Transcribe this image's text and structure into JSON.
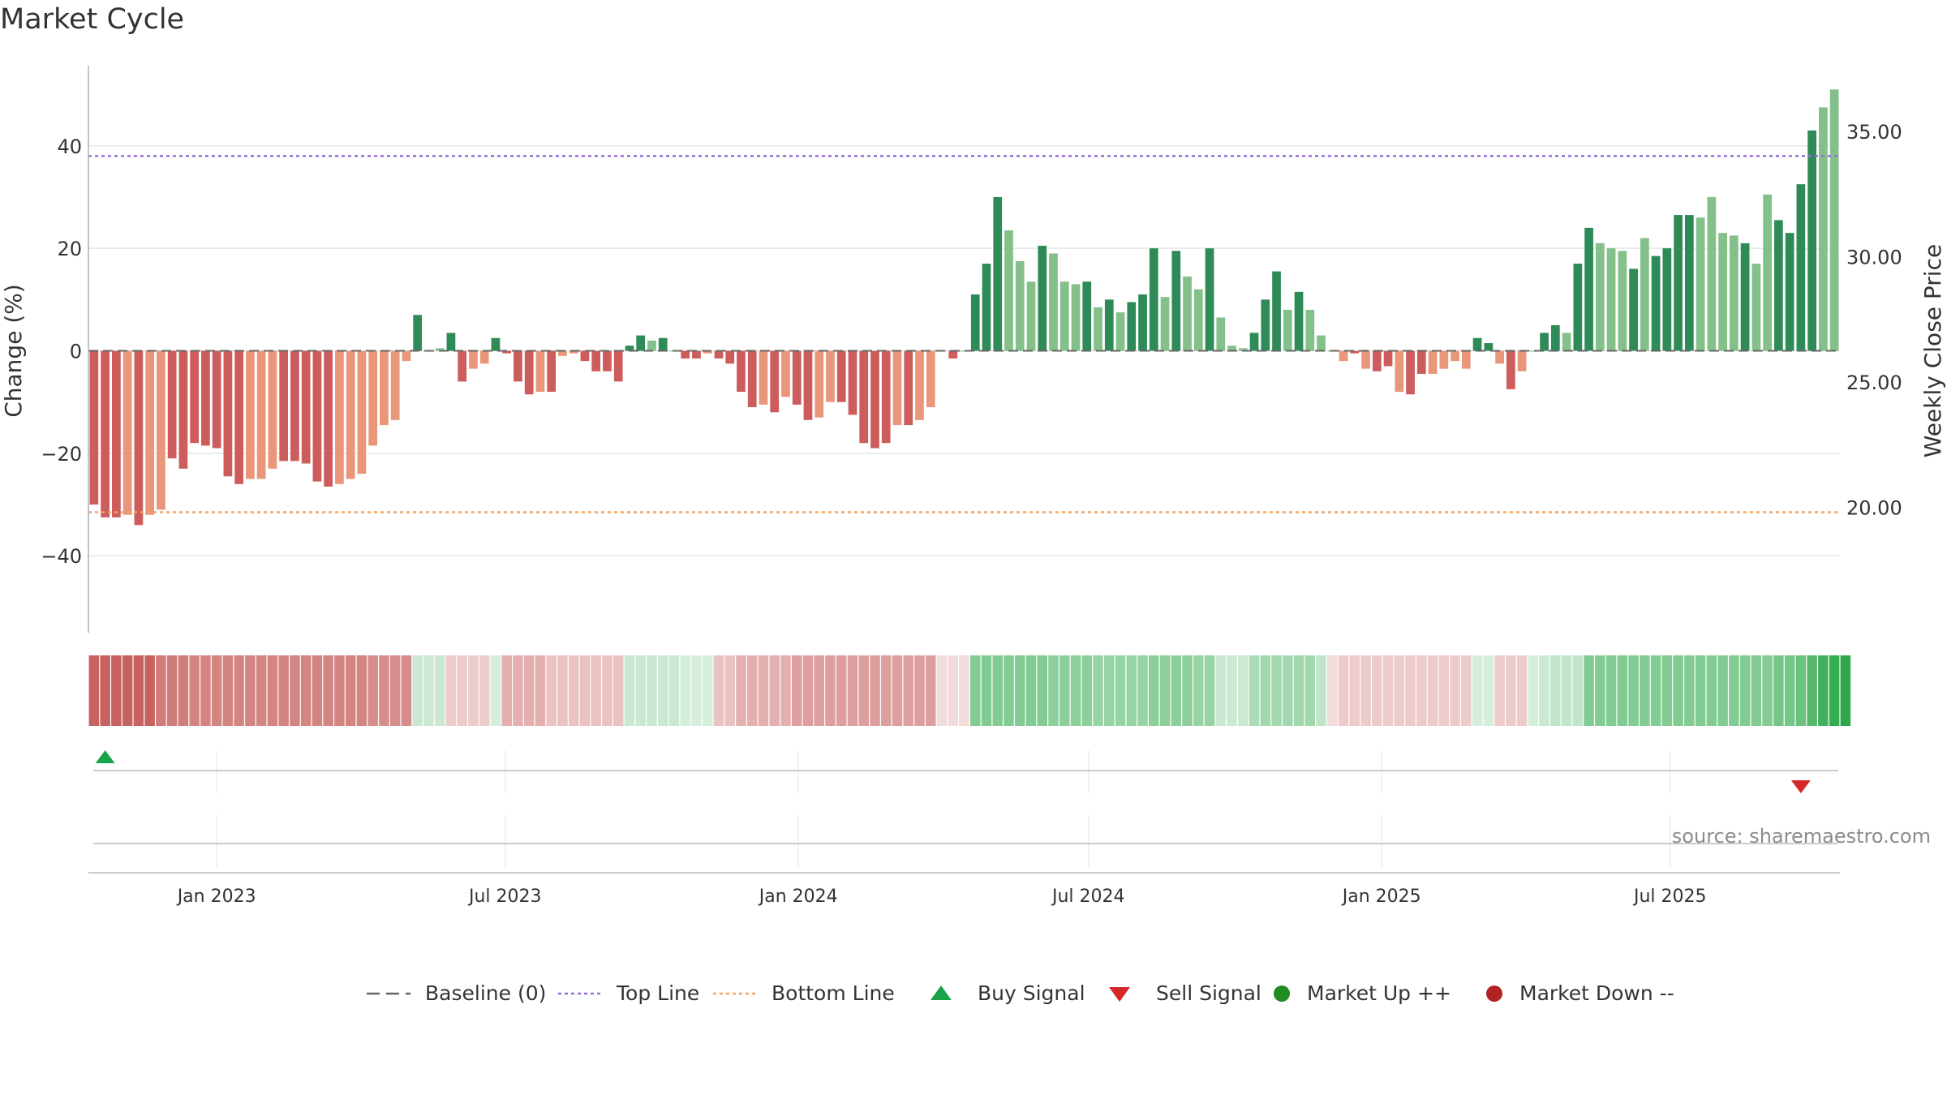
{
  "title": "Market Cycle",
  "source": "source: sharemaestro.com",
  "colors": {
    "strong_up": "#2e8b57",
    "weak_up": "#84c18a",
    "strong_down": "#cd5c5c",
    "weak_down": "#e9967a",
    "top_line": "#9370db",
    "bottom_line": "#f4a460",
    "baseline": "#666666",
    "buy": "#1aa34a",
    "sell": "#d62728",
    "market_up": "#228b22",
    "market_down": "#b22222"
  },
  "chart_data": {
    "type": "bar",
    "x_start": "2022-10-16",
    "x_interval_days": 7,
    "ylabel": "Change (%)",
    "ylabel_right": "Weekly Close Price",
    "ylim": [
      -55,
      55
    ],
    "yticks": [
      "40",
      "20",
      "0",
      "−20",
      "−40"
    ],
    "ytick_values": [
      40,
      20,
      0,
      -20,
      -40
    ],
    "y2lim": [
      15.0,
      37.5
    ],
    "y2ticks": [
      "35.00",
      "30.00",
      "25.00",
      "20.00"
    ],
    "y2tick_values": [
      35,
      30,
      25,
      20
    ],
    "xticks": [
      "Jan 2023",
      "Jul 2023",
      "Jan 2024",
      "Jul 2024",
      "Jan 2025",
      "Jul 2025"
    ],
    "xtick_dates": [
      "2023-01-01",
      "2023-07-01",
      "2024-01-01",
      "2024-07-01",
      "2025-01-01",
      "2025-07-01"
    ],
    "top_line": 38,
    "bottom_line": -31.5,
    "baseline": 0,
    "values": [
      -30,
      -32.5,
      -32.5,
      -32,
      -34,
      -32,
      -31,
      -21,
      -23,
      -18,
      -18.5,
      -19,
      -24.5,
      -26,
      -25,
      -25,
      -23,
      -21.5,
      -21.5,
      -22,
      -25.5,
      -26.5,
      -26,
      -25,
      -24,
      -18.5,
      -14.5,
      -13.5,
      -2,
      7,
      0,
      0.5,
      3.5,
      -6,
      -3.5,
      -2.5,
      2.5,
      -0.5,
      -6,
      -8.5,
      -8,
      -8,
      -1,
      -0.5,
      -2,
      -4,
      -4,
      -6,
      1,
      3,
      2,
      2.5,
      0,
      -1.5,
      -1.5,
      -0.5,
      -1.5,
      -2.5,
      -8,
      -11,
      -10.5,
      -12,
      -9,
      -10.5,
      -13.5,
      -13,
      -10,
      -10,
      -12.5,
      -18,
      -19,
      -18,
      -14.5,
      -14.5,
      -13.5,
      -11,
      0,
      -1.5,
      0,
      11,
      17,
      30,
      23.5,
      17.5,
      13.5,
      20.5,
      19,
      13.5,
      13,
      13.5,
      8.5,
      10,
      7.5,
      9.5,
      11,
      20,
      10.5,
      19.5,
      14.5,
      12,
      20,
      6.5,
      1,
      0.5,
      3.5,
      10,
      15.5,
      8,
      11.5,
      8,
      3,
      0,
      -2,
      -0.5,
      -3.5,
      -4,
      -3,
      -8,
      -8.5,
      -4.5,
      -4.5,
      -3.5,
      -2,
      -3.5,
      2.5,
      1.5,
      -2.5,
      -7.5,
      -4,
      0,
      3.5,
      5,
      3.5,
      17,
      24,
      21,
      20,
      19.5,
      16,
      22,
      18.5,
      20,
      26.5,
      26.5,
      26,
      30,
      23,
      22.5,
      21,
      17,
      30.5,
      25.5,
      23,
      32.5,
      43,
      47.5,
      51
    ],
    "strength": [
      "s",
      "s",
      "s",
      "w",
      "s",
      "w",
      "w",
      "s",
      "s",
      "s",
      "s",
      "s",
      "s",
      "s",
      "w",
      "w",
      "w",
      "s",
      "s",
      "s",
      "s",
      "s",
      "w",
      "w",
      "w",
      "w",
      "w",
      "w",
      "w",
      "s",
      "s",
      "w",
      "s",
      "s",
      "w",
      "w",
      "s",
      "s",
      "s",
      "s",
      "w",
      "s",
      "w",
      "w",
      "s",
      "s",
      "s",
      "s",
      "s",
      "s",
      "w",
      "s",
      "w",
      "s",
      "s",
      "w",
      "s",
      "s",
      "s",
      "s",
      "w",
      "s",
      "w",
      "s",
      "s",
      "w",
      "w",
      "s",
      "s",
      "s",
      "s",
      "s",
      "w",
      "s",
      "w",
      "w",
      "w",
      "s",
      "w",
      "s",
      "s",
      "s",
      "w",
      "w",
      "w",
      "s",
      "w",
      "w",
      "w",
      "s",
      "w",
      "s",
      "w",
      "s",
      "s",
      "s",
      "w",
      "s",
      "w",
      "w",
      "s",
      "w",
      "w",
      "w",
      "s",
      "s",
      "s",
      "w",
      "s",
      "w",
      "w",
      "w",
      "w",
      "s",
      "w",
      "s",
      "s",
      "w",
      "s",
      "s",
      "w",
      "w",
      "w",
      "w",
      "s",
      "s",
      "w",
      "s",
      "w",
      "w",
      "s",
      "s",
      "w",
      "s",
      "s",
      "w",
      "w",
      "w",
      "s",
      "w",
      "s",
      "s",
      "s",
      "s",
      "w",
      "w",
      "w",
      "w",
      "s",
      "w",
      "w",
      "s",
      "s",
      "s",
      "s"
    ],
    "legend": [
      {
        "label": "Baseline (0)",
        "marker": "dash"
      },
      {
        "label": "Top Line",
        "marker": "dotted"
      },
      {
        "label": "Bottom Line",
        "marker": "dotted"
      },
      {
        "label": "Buy Signal",
        "marker": "triangle-up"
      },
      {
        "label": "Sell Signal",
        "marker": "triangle-down"
      },
      {
        "label": "Market Up ++",
        "marker": "circle"
      },
      {
        "label": "Market Down --",
        "marker": "circle"
      }
    ],
    "signals": [
      {
        "type": "buy",
        "date": "2022-10-23"
      },
      {
        "type": "sell",
        "date": "2025-09-21"
      }
    ],
    "heat_strip": [
      -0.9,
      -0.9,
      -0.9,
      -0.9,
      -0.9,
      -0.9,
      -0.75,
      -0.75,
      -0.75,
      -0.7,
      -0.7,
      -0.7,
      -0.7,
      -0.7,
      -0.7,
      -0.7,
      -0.7,
      -0.7,
      -0.7,
      -0.7,
      -0.7,
      -0.7,
      -0.7,
      -0.7,
      -0.7,
      -0.65,
      -0.65,
      -0.65,
      -0.65,
      0.25,
      0.25,
      0.25,
      -0.3,
      -0.3,
      -0.3,
      -0.3,
      0.2,
      -0.45,
      -0.45,
      -0.45,
      -0.45,
      -0.35,
      -0.35,
      -0.35,
      -0.35,
      -0.35,
      -0.35,
      -0.35,
      0.25,
      0.25,
      0.25,
      0.25,
      0.25,
      0.2,
      0.2,
      0.2,
      -0.35,
      -0.35,
      -0.45,
      -0.45,
      -0.45,
      -0.45,
      -0.45,
      -0.55,
      -0.55,
      -0.55,
      -0.55,
      -0.55,
      -0.55,
      -0.55,
      -0.55,
      -0.55,
      -0.55,
      -0.55,
      -0.55,
      -0.55,
      -0.2,
      -0.2,
      -0.2,
      0.6,
      0.6,
      0.6,
      0.6,
      0.6,
      0.6,
      0.6,
      0.55,
      0.55,
      0.55,
      0.55,
      0.5,
      0.5,
      0.5,
      0.5,
      0.5,
      0.55,
      0.55,
      0.55,
      0.55,
      0.5,
      0.5,
      0.25,
      0.25,
      0.25,
      0.4,
      0.45,
      0.45,
      0.45,
      0.45,
      0.45,
      0.3,
      -0.2,
      -0.3,
      -0.3,
      -0.3,
      -0.3,
      -0.3,
      -0.3,
      -0.3,
      -0.3,
      -0.3,
      -0.3,
      -0.3,
      -0.3,
      0.2,
      0.2,
      -0.3,
      -0.3,
      -0.3,
      0.2,
      0.25,
      0.3,
      0.3,
      0.3,
      0.6,
      0.6,
      0.6,
      0.6,
      0.6,
      0.6,
      0.6,
      0.6,
      0.6,
      0.6,
      0.6,
      0.6,
      0.6,
      0.6,
      0.6,
      0.6,
      0.6,
      0.65,
      0.65,
      0.7,
      0.8,
      0.9,
      0.95,
      1.0
    ]
  }
}
